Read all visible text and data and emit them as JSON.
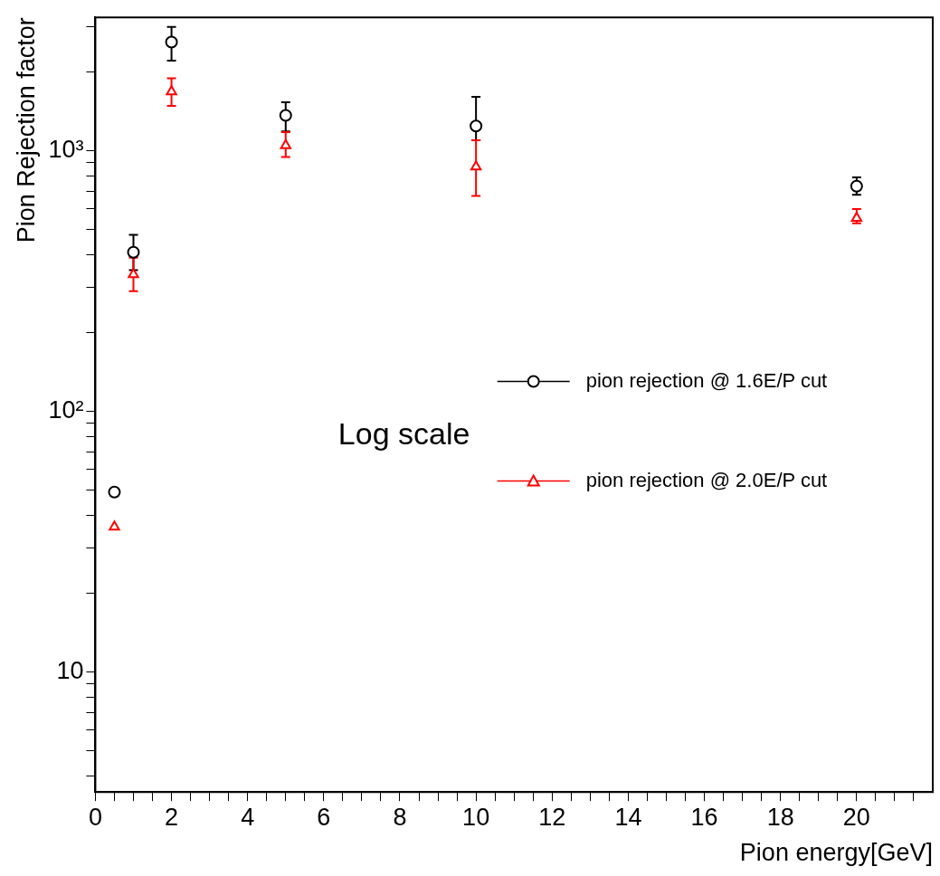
{
  "chart_data": {
    "type": "scatter",
    "xlabel": "Pion energy[GeV]",
    "ylabel": "Pion Rejection factor",
    "log": "y",
    "legend": "right",
    "grid": false,
    "xlim": [
      0,
      22
    ],
    "ylim": [
      3.46,
      3250
    ],
    "xticks": [
      0,
      {
        "value": 0.5,
        "label": null
      },
      {
        "value": 1,
        "label": null
      },
      {
        "value": 1.5,
        "label": null
      },
      2,
      {
        "value": 2.5,
        "label": null
      },
      {
        "value": 3,
        "label": null
      },
      {
        "value": 3.5,
        "label": null
      },
      4,
      {
        "value": 4.5,
        "label": null
      },
      {
        "value": 5,
        "label": null
      },
      {
        "value": 5.5,
        "label": null
      },
      6,
      {
        "value": 6.5,
        "label": null
      },
      {
        "value": 7,
        "label": null
      },
      {
        "value": 7.5,
        "label": null
      },
      8,
      {
        "value": 8.5,
        "label": null
      },
      {
        "value": 9,
        "label": null
      },
      {
        "value": 9.5,
        "label": null
      },
      10,
      {
        "value": 10.5,
        "label": null
      },
      {
        "value": 11,
        "label": null
      },
      {
        "value": 11.5,
        "label": null
      },
      12,
      {
        "value": 12.5,
        "label": null
      },
      {
        "value": 13,
        "label": null
      },
      {
        "value": 13.5,
        "label": null
      },
      14,
      {
        "value": 14.5,
        "label": null
      },
      {
        "value": 15,
        "label": null
      },
      {
        "value": 15.5,
        "label": null
      },
      16,
      {
        "value": 16.5,
        "label": null
      },
      {
        "value": 17,
        "label": null
      },
      {
        "value": 17.5,
        "label": null
      },
      18,
      {
        "value": 18.5,
        "label": null
      },
      {
        "value": 19,
        "label": null
      },
      {
        "value": 19.5,
        "label": null
      },
      20,
      {
        "value": 20.5,
        "label": null
      },
      {
        "value": 21,
        "label": null
      },
      {
        "value": 21.5,
        "label": null
      }
    ],
    "yticks": [
      {
        "value": 4,
        "label": null
      },
      {
        "value": 5,
        "label": null
      },
      {
        "value": 6,
        "label": null
      },
      {
        "value": 7,
        "label": null
      },
      {
        "value": 8,
        "label": null
      },
      {
        "value": 9,
        "label": null
      },
      10,
      {
        "value": 20,
        "label": null
      },
      {
        "value": 30,
        "label": null
      },
      {
        "value": 40,
        "label": null
      },
      {
        "value": 50,
        "label": null
      },
      {
        "value": 60,
        "label": null
      },
      {
        "value": 70,
        "label": null
      },
      {
        "value": 80,
        "label": null
      },
      {
        "value": 90,
        "label": null
      },
      {
        "value": 100,
        "label": "10²"
      },
      {
        "value": 200,
        "label": null
      },
      {
        "value": 300,
        "label": null
      },
      {
        "value": 400,
        "label": null
      },
      {
        "value": 500,
        "label": null
      },
      {
        "value": 600,
        "label": null
      },
      {
        "value": 700,
        "label": null
      },
      {
        "value": 800,
        "label": null
      },
      {
        "value": 900,
        "label": null
      },
      {
        "value": 1000,
        "label": "10³"
      },
      {
        "value": 2000,
        "label": null
      },
      {
        "value": 3000,
        "label": null
      }
    ],
    "annotations": [
      "Log scale"
    ],
    "series": [
      {
        "name": "pion rejection @ 1.6E/P cut",
        "color": "#000000",
        "marker": "circle",
        "x": [
          0.5,
          1,
          2,
          5,
          10,
          20
        ],
        "values": [
          49,
          408,
          2612,
          1367,
          1244,
          731
        ],
        "errors": [
          null,
          [
            348,
            476
          ],
          [
            2218,
            2985
          ],
          [
            1187,
            1536
          ],
          [
            1098,
            1610
          ],
          [
            677,
            791
          ]
        ]
      },
      {
        "name": "pion rejection @ 2.0E/P cut",
        "color": "#ff0000",
        "marker": "triangle",
        "x": [
          0.5,
          1,
          2,
          5,
          10,
          20
        ],
        "values": [
          36,
          335,
          1687,
          1048,
          869,
          552
        ],
        "errors": [
          null,
          [
            289,
            389
          ],
          [
            1488,
            1897
          ],
          [
            946,
            1178
          ],
          [
            671,
            1098
          ],
          [
            527,
            597
          ]
        ]
      }
    ]
  }
}
